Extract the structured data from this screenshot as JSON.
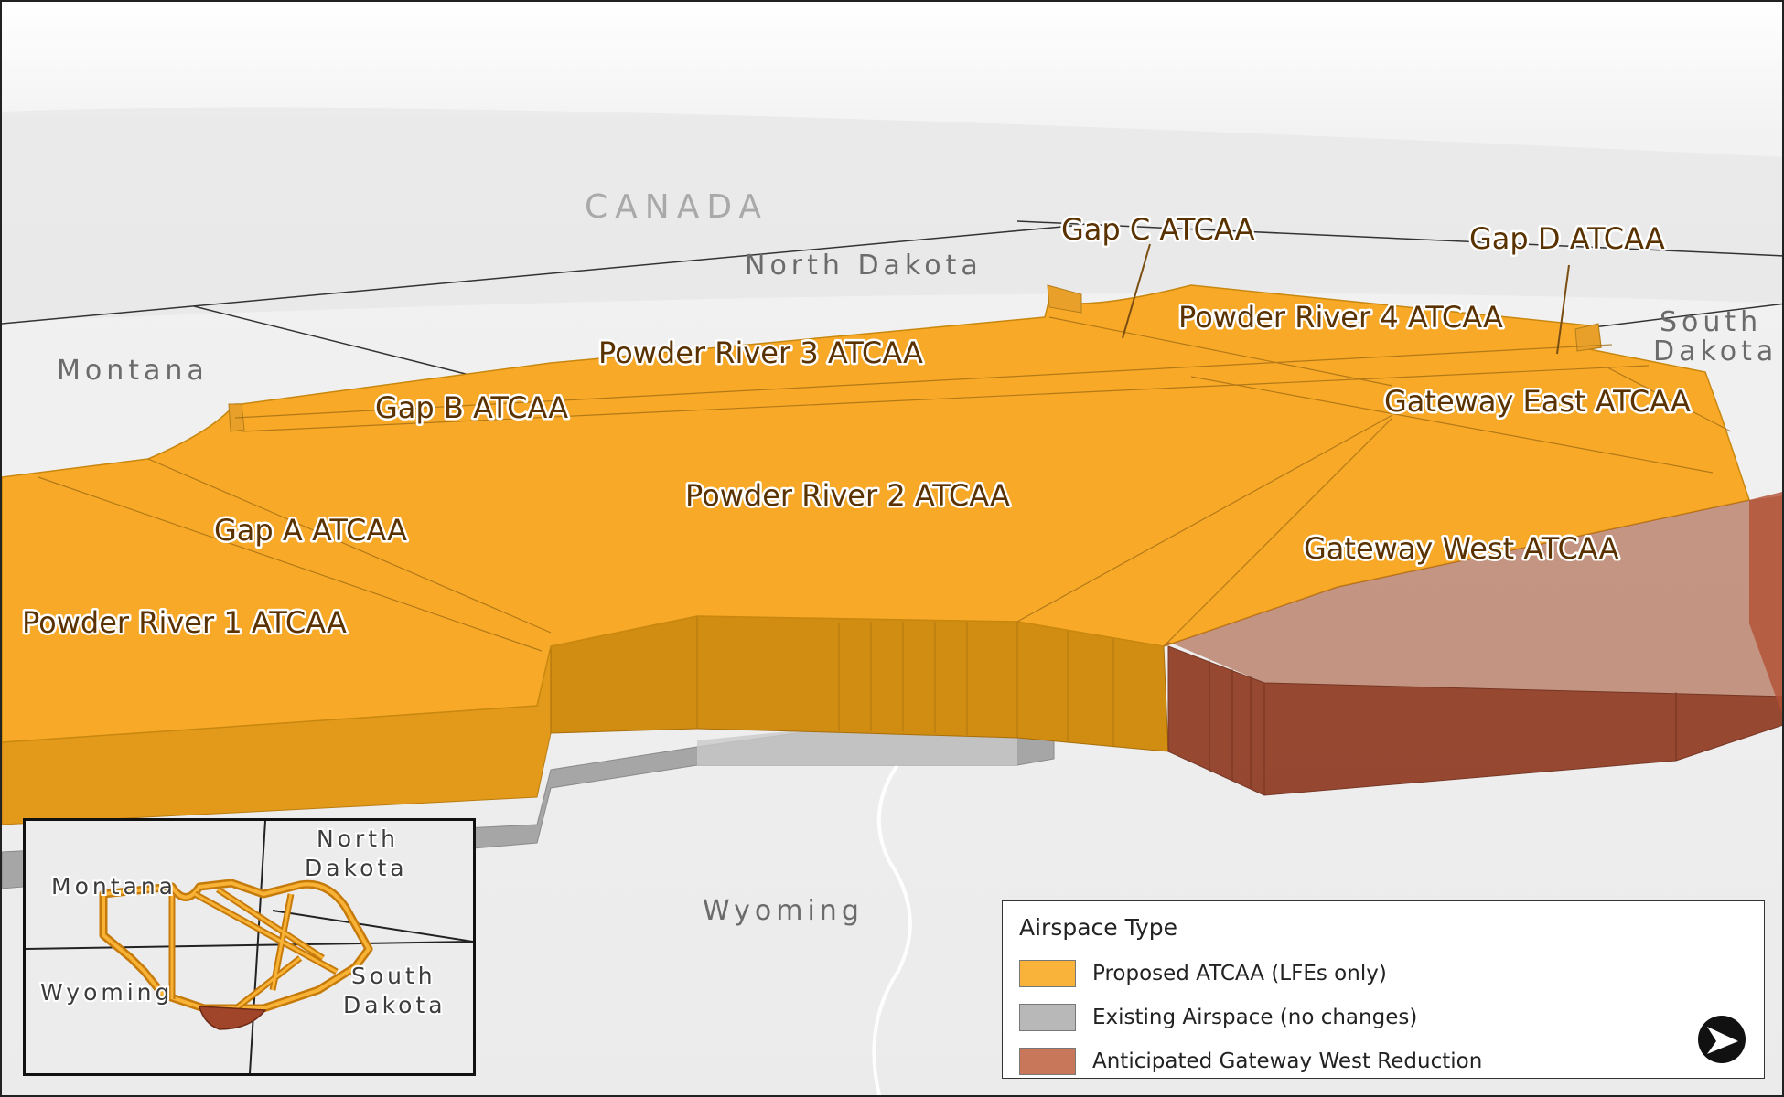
{
  "places": {
    "canada": "CANADA",
    "north_dakota": "North Dakota",
    "montana": "Montana",
    "south_dakota_line1": "South",
    "south_dakota_line2": "Dakota",
    "wyoming": "Wyoming"
  },
  "zones": {
    "gap_c": "Gap C ATCAA",
    "gap_d": "Gap D ATCAA",
    "powder_river_4": "Powder River 4 ATCAA",
    "powder_river_3": "Powder River 3 ATCAA",
    "gap_b": "Gap B ATCAA",
    "gateway_east": "Gateway East ATCAA",
    "powder_river_2": "Powder River 2 ATCAA",
    "gap_a": "Gap A ATCAA",
    "gateway_west": "Gateway West ATCAA",
    "powder_river_1": "Powder River 1 ATCAA"
  },
  "inset": {
    "montana": "Montana",
    "north_dakota_line1": "North",
    "north_dakota_line2": "Dakota",
    "wyoming": "Wyoming",
    "south_dakota_line1": "South",
    "south_dakota_line2": "Dakota"
  },
  "legend": {
    "title": "Airspace Type",
    "items": [
      {
        "label": "Proposed ATCAA (LFEs only)",
        "color": "#f9b33a"
      },
      {
        "label": "Existing Airspace (no changes)",
        "color": "#b8b8b8"
      },
      {
        "label": "Anticipated Gateway West Reduction",
        "color": "#c8775a"
      }
    ]
  },
  "colors": {
    "proposed": "#f8a928",
    "proposed_wall": "#d48c10",
    "existing": "#a6a6a6",
    "reduction": "#9c4228",
    "terrain": "#ececec"
  },
  "north_arrow": "north-arrow-icon"
}
